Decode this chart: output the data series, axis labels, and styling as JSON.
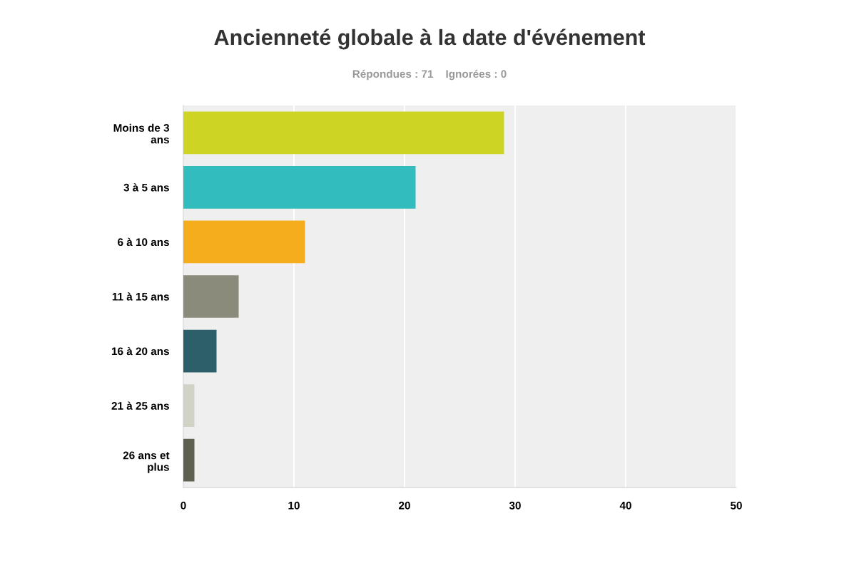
{
  "chart_data": {
    "type": "bar",
    "orientation": "horizontal",
    "title": "Ancienneté globale à la date d'événement",
    "subtitle": "Répondues : 71    Ignorées : 0",
    "categories": [
      "Moins de 3 ans",
      "3 à 5 ans",
      "6 à 10 ans",
      "11 à 15 ans",
      "16 à 20 ans",
      "21 à 25 ans",
      "26 ans et plus"
    ],
    "values": [
      29,
      21,
      11,
      5,
      3,
      1,
      1
    ],
    "colors": [
      "#cdd424",
      "#32bcbd",
      "#f5ad1e",
      "#8b8b7b",
      "#2d5f6a",
      "#d0d3c5",
      "#5e6050"
    ],
    "xlim": [
      0,
      50
    ],
    "xticks": [
      0,
      10,
      20,
      30,
      40,
      50
    ],
    "grid": "x"
  }
}
